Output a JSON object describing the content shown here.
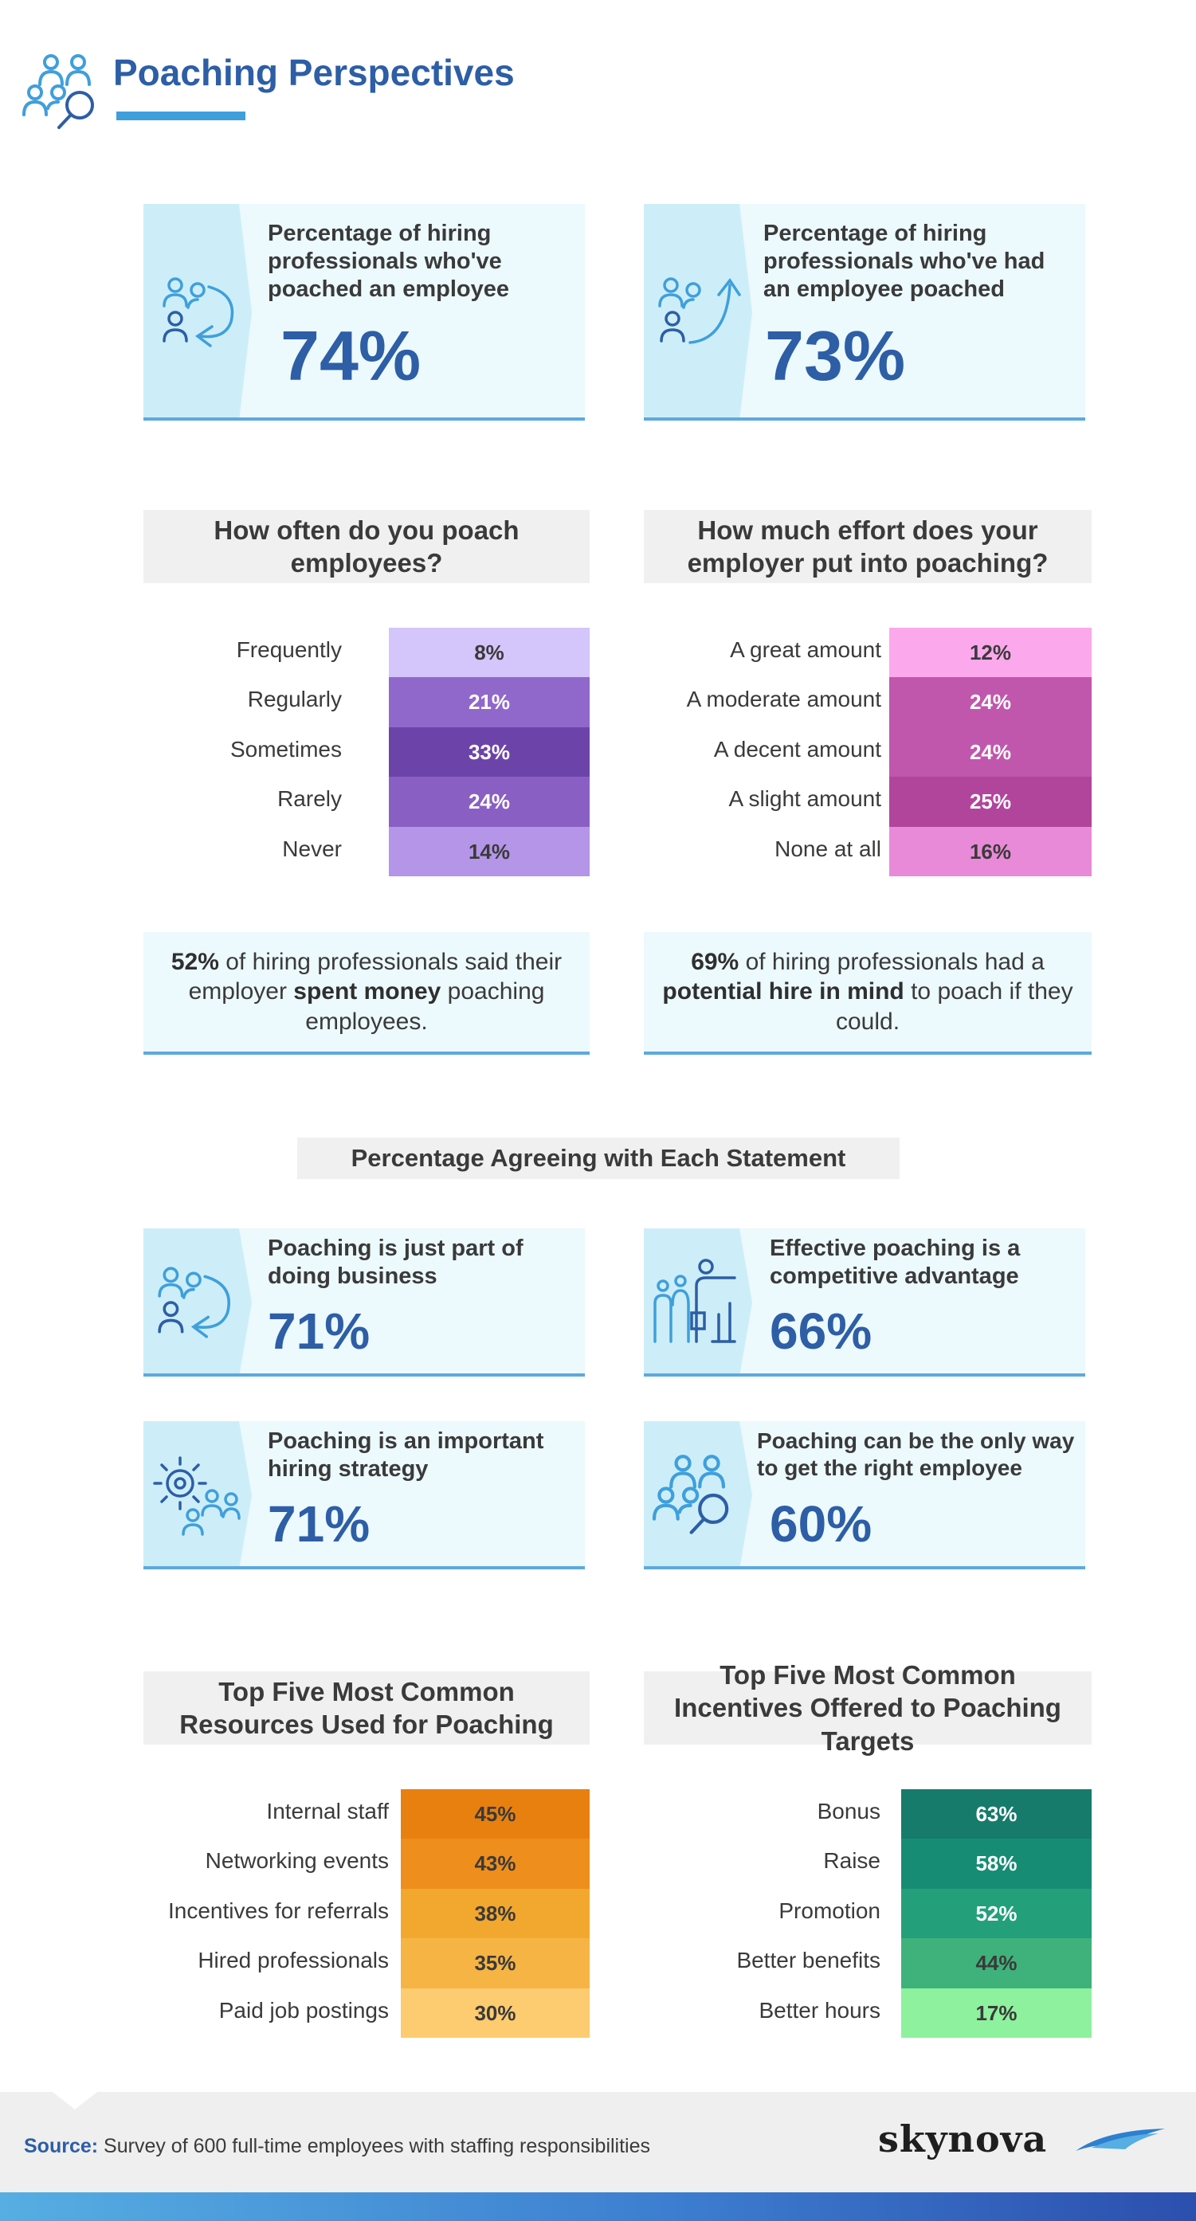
{
  "header": {
    "title": "Poaching Perspectives",
    "icon": "people-search-icon"
  },
  "stat_cards_top": [
    {
      "label": "Percentage of hiring professionals who've poached an employee",
      "value": "74%",
      "icon": "people-arrow-back-icon"
    },
    {
      "label": "Percentage of hiring professionals who've had an employee poached",
      "value": "73%",
      "icon": "people-arrow-up-icon"
    }
  ],
  "poach_frequency": {
    "title": "How often do you poach employees?",
    "rows": [
      {
        "label": "Frequently",
        "value": "8%",
        "color": "#d4c5fb",
        "text_color": "#3a3a3a"
      },
      {
        "label": "Regularly",
        "value": "21%",
        "color": "#9068cb",
        "text_color": "#ffffff"
      },
      {
        "label": "Sometimes",
        "value": "33%",
        "color": "#6c44a9",
        "text_color": "#ffffff"
      },
      {
        "label": "Rarely",
        "value": "24%",
        "color": "#8a5fc4",
        "text_color": "#ffffff"
      },
      {
        "label": "Never",
        "value": "14%",
        "color": "#b495e8",
        "text_color": "#3a3a3a"
      }
    ]
  },
  "employer_effort": {
    "title": "How much effort does your employer put into poaching?",
    "rows": [
      {
        "label": "A great amount",
        "value": "12%",
        "color": "#fca8ec",
        "text_color": "#3a3a3a"
      },
      {
        "label": "A moderate amount",
        "value": "24%",
        "color": "#c057ad",
        "text_color": "#ffffff"
      },
      {
        "label": "A decent amount",
        "value": "24%",
        "color": "#c057ad",
        "text_color": "#ffffff"
      },
      {
        "label": "A slight amount",
        "value": "25%",
        "color": "#b1459c",
        "text_color": "#ffffff"
      },
      {
        "label": "None at all",
        "value": "16%",
        "color": "#e98ad8",
        "text_color": "#3a3a3a"
      }
    ]
  },
  "info_boxes": [
    {
      "pct": "52%",
      "pre": " of hiring professionals said their employer ",
      "bold": "spent money",
      "post": " poaching employees."
    },
    {
      "pct": "69%",
      "pre": " of hiring professionals had a ",
      "bold": "potential hire in mind",
      "post": " to poach if they could."
    }
  ],
  "agreement": {
    "title": "Percentage Agreeing with Each Statement",
    "cards": [
      {
        "label": "Poaching is just part of doing business",
        "value": "71%",
        "icon": "people-arrow-back-icon"
      },
      {
        "label": "Effective poaching is a competitive advantage",
        "value": "66%",
        "icon": "presenter-chart-icon"
      },
      {
        "label": "Poaching is an important hiring strategy",
        "value": "71%",
        "icon": "gear-people-icon"
      },
      {
        "label": "Poaching can be the only way to get the right employee",
        "value": "60%",
        "icon": "people-search-icon"
      }
    ]
  },
  "resources": {
    "title": "Top Five Most Common Resources Used for Poaching",
    "rows": [
      {
        "label": "Internal staff",
        "value": "45%",
        "color": "#e8800f",
        "text_color": "#3a3a3a"
      },
      {
        "label": "Networking events",
        "value": "43%",
        "color": "#ee8e1c",
        "text_color": "#3a3a3a"
      },
      {
        "label": "Incentives for referrals",
        "value": "38%",
        "color": "#f2a72e",
        "text_color": "#3a3a3a"
      },
      {
        "label": "Hired professionals",
        "value": "35%",
        "color": "#f6b444",
        "text_color": "#3a3a3a"
      },
      {
        "label": "Paid job postings",
        "value": "30%",
        "color": "#fdcb70",
        "text_color": "#3a3a3a"
      }
    ]
  },
  "incentives": {
    "title": "Top Five Most Common Incentives Offered to Poaching Targets",
    "rows": [
      {
        "label": "Bonus",
        "value": "63%",
        "color": "#167b6b",
        "text_color": "#ffffff"
      },
      {
        "label": "Raise",
        "value": "58%",
        "color": "#178c74",
        "text_color": "#ffffff"
      },
      {
        "label": "Promotion",
        "value": "52%",
        "color": "#23a07a",
        "text_color": "#ffffff"
      },
      {
        "label": "Better benefits",
        "value": "44%",
        "color": "#3fb27b",
        "text_color": "#3a3a3a"
      },
      {
        "label": "Better hours",
        "value": "17%",
        "color": "#8ef19e",
        "text_color": "#3a3a3a"
      }
    ]
  },
  "footer": {
    "source_label": "Source:",
    "source_text": " Survey of 600 full-time employees with staffing responsibilities",
    "brand": "skynova",
    "brand_icon": "skynova-swoosh-icon"
  }
}
